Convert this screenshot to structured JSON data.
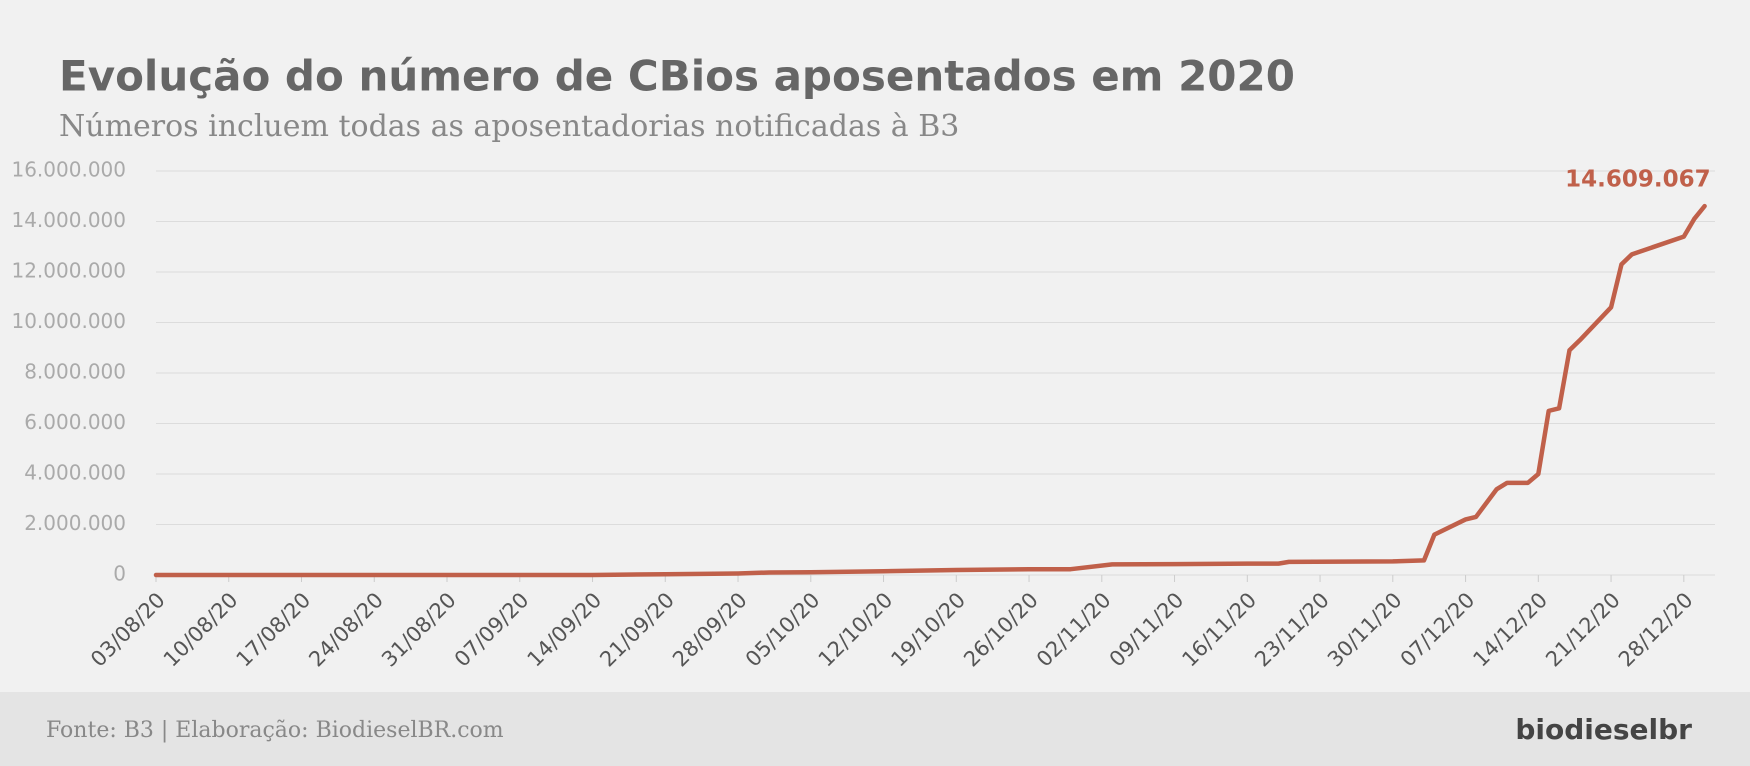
{
  "chart_data": {
    "type": "line",
    "title": "Evolução do número de CBios aposentados em 2020",
    "subtitle": "Números incluem todas as aposentadorias notificadas à B3",
    "x": [
      "03/08/20",
      "14/09/20",
      "21/09/20",
      "28/09/20",
      "01/10/20",
      "05/10/20",
      "12/10/20",
      "19/10/20",
      "26/10/20",
      "30/10/20",
      "03/11/20",
      "09/11/20",
      "16/11/20",
      "19/11/20",
      "20/11/20",
      "30/11/20",
      "03/12/20",
      "04/12/20",
      "07/12/20",
      "08/12/20",
      "10/12/20",
      "11/12/20",
      "13/12/20",
      "14/12/20",
      "15/12/20",
      "16/12/20",
      "17/12/20",
      "18/12/20",
      "21/12/20",
      "22/12/20",
      "23/12/20",
      "28/12/20",
      "29/12/20",
      "30/12/20"
    ],
    "series": [
      {
        "name": "CBios aposentados",
        "color": "#c0604a",
        "values": [
          0,
          0,
          30000,
          60000,
          100000,
          110000,
          150000,
          200000,
          230000,
          230000,
          420000,
          430000,
          450000,
          450000,
          520000,
          540000,
          580000,
          1600000,
          2200000,
          2300000,
          3400000,
          3650000,
          3650000,
          4000000,
          6500000,
          6600000,
          8900000,
          9300000,
          10600000,
          12300000,
          12700000,
          13400000,
          14100000,
          14609067
        ],
        "value_labels": [
          null,
          null,
          null,
          null,
          null,
          null,
          null,
          null,
          null,
          null,
          null,
          null,
          null,
          null,
          null,
          null,
          null,
          null,
          null,
          null,
          null,
          null,
          null,
          null,
          null,
          null,
          null,
          null,
          null,
          null,
          null,
          null,
          null,
          "14.609.067"
        ]
      }
    ],
    "xlim": [
      "03/08/20",
      "31/12/20"
    ],
    "xticks": [
      "03/08/20",
      "10/08/20",
      "17/08/20",
      "24/08/20",
      "31/08/20",
      "07/09/20",
      "14/09/20",
      "21/09/20",
      "28/09/20",
      "05/10/20",
      "12/10/20",
      "19/10/20",
      "26/10/20",
      "02/11/20",
      "09/11/20",
      "16/11/20",
      "23/11/20",
      "30/11/20",
      "07/12/20",
      "14/12/20",
      "21/12/20",
      "28/12/20"
    ],
    "ylim": [
      0,
      16000000
    ],
    "yticks": [
      0,
      {
        "value": 2000000,
        "label": "2.000.000"
      },
      {
        "value": 4000000,
        "label": "4.000.000"
      },
      {
        "value": 6000000,
        "label": "6.000.000"
      },
      {
        "value": 8000000,
        "label": "8.000.000"
      },
      {
        "value": 10000000,
        "label": "10.000.000"
      },
      {
        "value": 12000000,
        "label": "12.000.000"
      },
      {
        "value": 14000000,
        "label": "14.000.000"
      },
      {
        "value": 16000000,
        "label": "16.000.000"
      }
    ],
    "grid": true
  },
  "footer": {
    "source": "Fonte: B3 | Elaboração: BiodieselBR.com",
    "logo": "biodieselbr"
  }
}
